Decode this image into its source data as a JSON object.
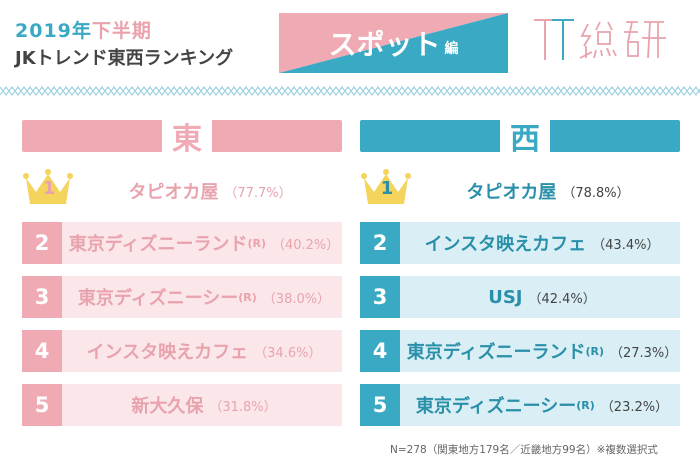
{
  "header": {
    "year_prefix": "2019",
    "year_suffix": "年",
    "half": "下半期",
    "subtitle": "JKトレンド東西ランキング",
    "banner_main": "スポット",
    "banner_sub": "編",
    "logo_text": "TT総研"
  },
  "east": {
    "heading": "東",
    "top": {
      "rank": "1",
      "name": "タピオカ屋",
      "pct": "（77.7%）"
    },
    "items": [
      {
        "rank": "2",
        "name": "東京ディズニーランド",
        "reg": "(R)",
        "pct": "（40.2%）"
      },
      {
        "rank": "3",
        "name": "東京ディズニーシー",
        "reg": "(R)",
        "pct": "（38.0%）"
      },
      {
        "rank": "4",
        "name": "インスタ映えカフェ",
        "reg": "",
        "pct": "（34.6%）"
      },
      {
        "rank": "5",
        "name": "新大久保",
        "reg": "",
        "pct": "（31.8%）"
      }
    ]
  },
  "west": {
    "heading": "西",
    "top": {
      "rank": "1",
      "name": "タピオカ屋",
      "pct": "（78.8%）"
    },
    "items": [
      {
        "rank": "2",
        "name": "インスタ映えカフェ",
        "reg": "",
        "pct": "（43.4%）"
      },
      {
        "rank": "3",
        "name": "USJ",
        "reg": "",
        "pct": "（42.4%）"
      },
      {
        "rank": "4",
        "name": "東京ディズニーランド",
        "reg": "(R)",
        "pct": "（27.3%）"
      },
      {
        "rank": "5",
        "name": "東京ディズニーシー",
        "reg": "(R)",
        "pct": "（23.2%）"
      }
    ]
  },
  "footnote": "N=278（関東地方179名／近畿地方99名）※複数選択式",
  "colors": {
    "pink": "#f0aab4",
    "pink_text": "#e8a3ad",
    "pink_bg": "#fbe7ea",
    "blue": "#3aa9c4",
    "blue_bg": "#d9eff5",
    "gold": "#f4d45c"
  }
}
